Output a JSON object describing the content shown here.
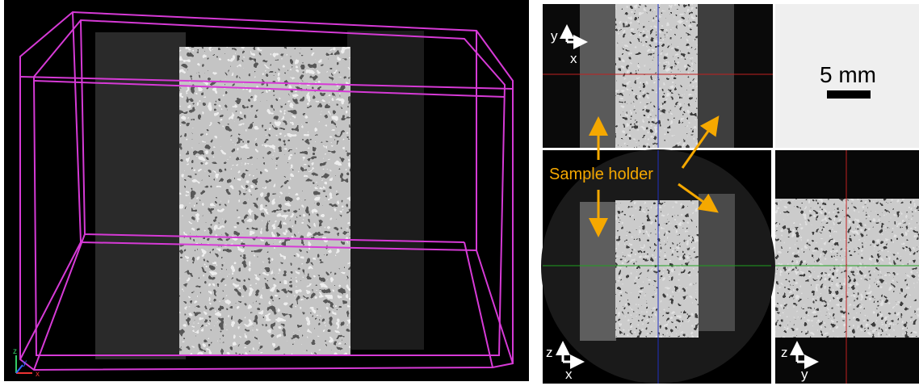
{
  "volume_view": {
    "axes": {
      "z": "z",
      "y": "y",
      "x": "x"
    }
  },
  "xy_view": {
    "axis_vertical": "y",
    "axis_horizontal": "x"
  },
  "scale_bar": {
    "label": "5 mm"
  },
  "xz_view": {
    "axis_vertical": "z",
    "axis_horizontal": "x",
    "annotation": "Sample holder"
  },
  "yz_view": {
    "axis_vertical": "z",
    "axis_horizontal": "y"
  }
}
